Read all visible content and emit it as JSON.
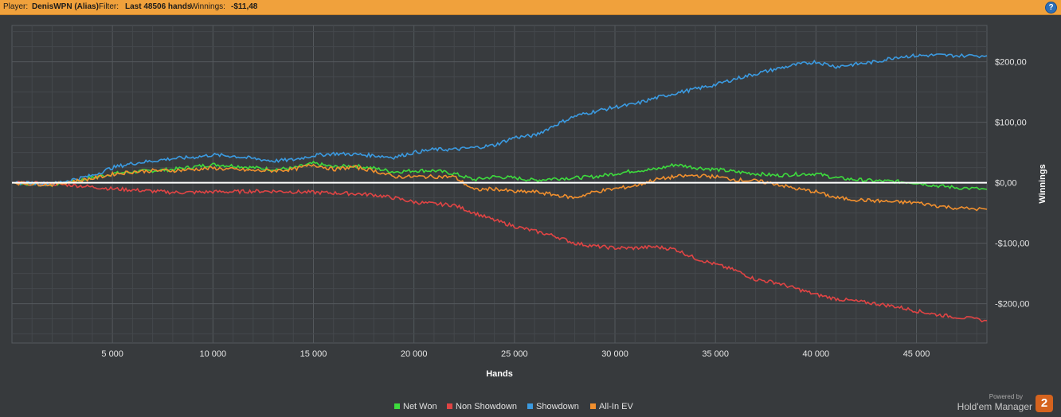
{
  "header": {
    "player_label": "Player:",
    "player_name": "DenisWPN (Alias)",
    "filter_label": "Filter:",
    "filter_value": "Last 48506 hands",
    "winnings_label": "Winnings:",
    "winnings_value": "-$11,48",
    "help_icon": "question-icon",
    "help_text": "?"
  },
  "footer": {
    "powered_by": "Powered by",
    "brand": "Hold'em Manager",
    "brand_badge": "2"
  },
  "colors": {
    "header_bg": "#f0a13c",
    "plot_bg": "#373a3d",
    "net_won": "#3ddb3d",
    "non_showdown": "#e04444",
    "showdown": "#3b9ae0",
    "allin_ev": "#f08f2e",
    "zero_line": "#ffffff"
  },
  "chart_data": {
    "type": "line",
    "xlabel": "Hands",
    "ylabel": "Winnings",
    "xlim": [
      0,
      48506
    ],
    "ylim": [
      -265,
      260
    ],
    "x_ticks": [
      5000,
      10000,
      15000,
      20000,
      25000,
      30000,
      35000,
      40000,
      45000
    ],
    "x_tick_labels": [
      "5 000",
      "10 000",
      "15 000",
      "20 000",
      "25 000",
      "30 000",
      "35 000",
      "40 000",
      "45 000"
    ],
    "y_ticks": [
      200,
      100,
      0,
      -100,
      -200
    ],
    "y_tick_labels": [
      "$200,00",
      "$100,00",
      "$0,00",
      "-$100,00",
      "-$200,00"
    ],
    "grid": true,
    "legend_position": "bottom",
    "series": [
      {
        "name": "Net Won",
        "color_key": "net_won",
        "x": [
          0,
          1000,
          2000,
          3000,
          4000,
          5000,
          6000,
          7000,
          8000,
          9000,
          10000,
          11000,
          12000,
          13000,
          14000,
          15000,
          16000,
          17000,
          18000,
          19000,
          20000,
          21000,
          22000,
          23000,
          24000,
          25000,
          26000,
          27000,
          28000,
          29000,
          30000,
          31000,
          32000,
          33000,
          34000,
          35000,
          36000,
          37000,
          38000,
          39000,
          40000,
          41000,
          42000,
          43000,
          44000,
          45000,
          46000,
          47000,
          48506
        ],
        "values": [
          0,
          -2,
          -3,
          2,
          8,
          15,
          18,
          20,
          22,
          26,
          30,
          28,
          25,
          22,
          24,
          32,
          26,
          28,
          24,
          18,
          20,
          20,
          15,
          5,
          10,
          8,
          4,
          7,
          8,
          10,
          15,
          20,
          22,
          30,
          25,
          22,
          18,
          15,
          12,
          14,
          15,
          8,
          5,
          3,
          2,
          0,
          -5,
          -8,
          -11
        ]
      },
      {
        "name": "Non Showdown",
        "color_key": "non_showdown",
        "x": [
          0,
          1000,
          2000,
          3000,
          4000,
          5000,
          6000,
          7000,
          8000,
          9000,
          10000,
          11000,
          12000,
          13000,
          14000,
          15000,
          16000,
          17000,
          18000,
          19000,
          20000,
          21000,
          22000,
          23000,
          24000,
          25000,
          26000,
          27000,
          28000,
          29000,
          30000,
          31000,
          32000,
          33000,
          34000,
          35000,
          36000,
          37000,
          38000,
          39000,
          40000,
          41000,
          42000,
          43000,
          44000,
          45000,
          46000,
          47000,
          48506
        ],
        "values": [
          0,
          -1,
          -2,
          -4,
          -7,
          -10,
          -12,
          -14,
          -16,
          -16,
          -15,
          -15,
          -14,
          -14,
          -15,
          -16,
          -17,
          -18,
          -20,
          -25,
          -32,
          -35,
          -37,
          -50,
          -62,
          -72,
          -80,
          -88,
          -100,
          -105,
          -108,
          -108,
          -106,
          -110,
          -125,
          -135,
          -145,
          -160,
          -165,
          -175,
          -185,
          -192,
          -196,
          -200,
          -205,
          -212,
          -218,
          -222,
          -228
        ]
      },
      {
        "name": "Showdown",
        "color_key": "showdown",
        "x": [
          0,
          1000,
          2000,
          3000,
          4000,
          5000,
          6000,
          7000,
          8000,
          9000,
          10000,
          11000,
          12000,
          13000,
          14000,
          15000,
          16000,
          17000,
          18000,
          19000,
          20000,
          21000,
          22000,
          23000,
          24000,
          25000,
          26000,
          27000,
          28000,
          29000,
          30000,
          31000,
          32000,
          33000,
          34000,
          35000,
          36000,
          37000,
          38000,
          39000,
          40000,
          41000,
          42000,
          43000,
          44000,
          45000,
          46000,
          47000,
          48506
        ],
        "values": [
          0,
          -1,
          -2,
          5,
          12,
          25,
          32,
          36,
          40,
          42,
          46,
          44,
          40,
          36,
          38,
          45,
          48,
          47,
          45,
          42,
          50,
          55,
          55,
          58,
          62,
          75,
          78,
          95,
          110,
          118,
          125,
          130,
          140,
          148,
          155,
          162,
          172,
          180,
          188,
          195,
          200,
          192,
          196,
          200,
          208,
          210,
          211,
          210,
          210
        ]
      },
      {
        "name": "All-In EV",
        "color_key": "allin_ev",
        "x": [
          0,
          1000,
          2000,
          3000,
          4000,
          5000,
          6000,
          7000,
          8000,
          9000,
          10000,
          11000,
          12000,
          13000,
          14000,
          15000,
          16000,
          17000,
          18000,
          19000,
          20000,
          21000,
          22000,
          23000,
          24000,
          25000,
          26000,
          27000,
          28000,
          29000,
          30000,
          31000,
          32000,
          33000,
          34000,
          35000,
          36000,
          37000,
          38000,
          39000,
          40000,
          41000,
          42000,
          43000,
          44000,
          45000,
          46000,
          47000,
          48506
        ],
        "values": [
          0,
          -2,
          -3,
          2,
          7,
          14,
          18,
          20,
          20,
          22,
          24,
          22,
          20,
          20,
          22,
          30,
          22,
          26,
          20,
          10,
          10,
          10,
          10,
          -12,
          -10,
          -15,
          -15,
          -20,
          -25,
          -15,
          -10,
          -5,
          5,
          10,
          12,
          10,
          5,
          3,
          -2,
          -10,
          -15,
          -25,
          -28,
          -30,
          -32,
          -33,
          -38,
          -42,
          -44
        ]
      }
    ]
  }
}
